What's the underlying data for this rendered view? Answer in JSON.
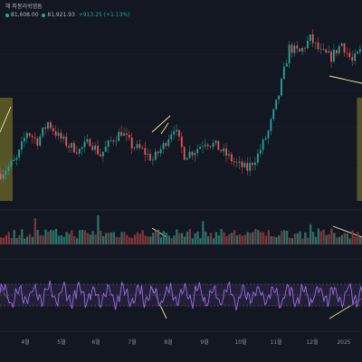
{
  "header": {
    "title_fragment": "해 파봉리쉬엠돔",
    "price_line": {
      "v1": "81,608.00",
      "v2": "81,921.93",
      "change": "+913.25 (+1.13%)"
    }
  },
  "colors": {
    "background": "#131722",
    "candle_up": "#26a69a",
    "candle_down": "#ef5350",
    "volume_up": "#2f7a6f",
    "volume_down": "#8a3a3a",
    "rsi_line": "#9a6be6",
    "rsi_band": "#2a2540",
    "highlight_box": "#6b6a2a",
    "drawn_line": "#f3e9a0",
    "grid": "#1f2430"
  },
  "chart_data": {
    "type": "candlestick",
    "x_ticks": [
      "4월",
      "5월",
      "6월",
      "7월",
      "8월",
      "9월",
      "10월",
      "11월",
      "12월",
      "2025"
    ],
    "price_path": [
      [
        0,
        57
      ],
      [
        6,
        60
      ],
      [
        10,
        66
      ],
      [
        14,
        64
      ],
      [
        18,
        68
      ],
      [
        22,
        65
      ],
      [
        26,
        63
      ],
      [
        30,
        62
      ],
      [
        34,
        64
      ],
      [
        38,
        61
      ],
      [
        42,
        64
      ],
      [
        46,
        66
      ],
      [
        50,
        63
      ],
      [
        54,
        62
      ],
      [
        58,
        60
      ],
      [
        62,
        63
      ],
      [
        66,
        67
      ],
      [
        70,
        61
      ],
      [
        74,
        62
      ],
      [
        78,
        64
      ],
      [
        82,
        63
      ],
      [
        86,
        61
      ],
      [
        90,
        59
      ],
      [
        94,
        58
      ],
      [
        98,
        61
      ],
      [
        102,
        66
      ],
      [
        106,
        74
      ],
      [
        110,
        84
      ],
      [
        114,
        83
      ],
      [
        118,
        86
      ],
      [
        122,
        83
      ],
      [
        126,
        82
      ],
      [
        130,
        85
      ],
      [
        134,
        81
      ],
      [
        138,
        84
      ]
    ],
    "price_range": [
      50,
      90
    ],
    "highlight_boxes": [
      [
        -3,
        1
      ],
      [
        134,
        138
      ]
    ],
    "volume_spikes": [
      {
        "x": 13,
        "v": 0.9
      },
      {
        "x": 37,
        "v": 1.0
      },
      {
        "x": 77,
        "v": 0.8
      },
      {
        "x": 118,
        "v": 0.7
      }
    ],
    "rsi": {
      "overbought": 70,
      "oversold": 30,
      "mid": 50
    }
  }
}
